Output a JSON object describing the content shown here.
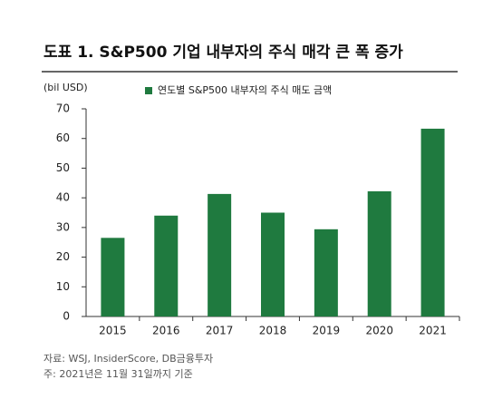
{
  "chart_data": {
    "type": "bar",
    "title": "도표 1. S&P500 기업 내부자의 주식 매각 큰 폭 증가",
    "y_label": "(bil USD)",
    "categories": [
      "2015",
      "2016",
      "2017",
      "2018",
      "2019",
      "2020",
      "2021"
    ],
    "series": [
      {
        "name": "연도별 S&P500 내부자의 주식 매도 금액",
        "color": "#1f7a3f",
        "values": [
          26.5,
          34,
          41.3,
          35,
          29.4,
          42.2,
          63.3
        ]
      }
    ],
    "ylim": [
      0,
      70
    ],
    "yticks": [
      0,
      10,
      20,
      30,
      40,
      50,
      60,
      70
    ],
    "grid": false,
    "source": "자료: WSJ, InsiderScore, DB금융투자",
    "note": "주: 2021년은 11월 31일까지 기준"
  }
}
